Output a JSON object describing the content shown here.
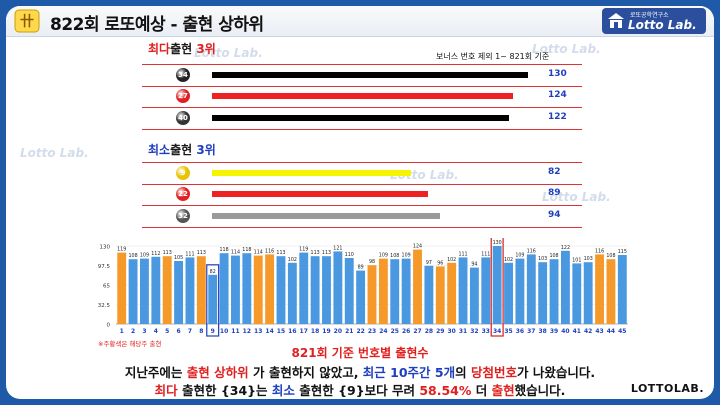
{
  "header": {
    "title": "822회 로또예상 - 출현 상하위",
    "brand_small": "로또공학연구소",
    "brand_big": "Lotto Lab."
  },
  "watermark": "Lotto Lab.",
  "top_section": {
    "title_a": "최다",
    "title_b": "출현",
    "title_c": "3위",
    "note": "보너스 번호 제외 1~ 821회 기준",
    "rows": [
      {
        "ball": "34",
        "count": "130",
        "value": 130,
        "ball_color": "#222222",
        "bar_color": "#000000"
      },
      {
        "ball": "27",
        "count": "124",
        "value": 124,
        "ball_color": "#e02020",
        "bar_color": "#ee2222"
      },
      {
        "ball": "40",
        "count": "122",
        "value": 122,
        "ball_color": "#333333",
        "bar_color": "#000000"
      }
    ]
  },
  "bottom_section": {
    "title_a": "최소",
    "title_b": "출현",
    "title_c": "3위",
    "rows": [
      {
        "ball": "9",
        "count": "82",
        "value": 82,
        "ball_color": "#e8c400",
        "bar_color": "#f5f500"
      },
      {
        "ball": "22",
        "count": "89",
        "value": 89,
        "ball_color": "#e02020",
        "bar_color": "#ee2222"
      },
      {
        "ball": "32",
        "count": "94",
        "value": 94,
        "ball_color": "#555555",
        "bar_color": "#9a9a9a"
      }
    ]
  },
  "chart_data": {
    "type": "bar",
    "title": "821회 기준 번호별 출현수",
    "legend_note": "※주황색은 해당주 출현",
    "categories": [
      "1",
      "2",
      "3",
      "4",
      "5",
      "6",
      "7",
      "8",
      "9",
      "10",
      "11",
      "12",
      "13",
      "14",
      "15",
      "16",
      "17",
      "18",
      "19",
      "20",
      "21",
      "22",
      "23",
      "24",
      "25",
      "26",
      "27",
      "28",
      "29",
      "30",
      "31",
      "32",
      "33",
      "34",
      "35",
      "36",
      "37",
      "38",
      "39",
      "40",
      "41",
      "42",
      "43",
      "44",
      "45"
    ],
    "values": [
      119,
      108,
      109,
      112,
      113,
      105,
      111,
      113,
      82,
      118,
      114,
      118,
      114,
      116,
      113,
      102,
      119,
      113,
      113,
      121,
      110,
      89,
      98,
      109,
      108,
      109,
      124,
      97,
      96,
      102,
      111,
      94,
      111,
      130,
      102,
      109,
      116,
      103,
      108,
      122,
      101,
      103,
      116,
      108,
      115
    ],
    "highlighted": [
      "1",
      "5",
      "8",
      "13",
      "14",
      "23",
      "24",
      "27",
      "29",
      "30",
      "43",
      "44"
    ],
    "boxed": [
      "9",
      "34"
    ],
    "bar_color": "#4a98e0",
    "highlight_color": "#f59a2a",
    "ylim": [
      0,
      130
    ],
    "y_ticks": [
      "130",
      "97.5",
      "65",
      "32.5",
      "0"
    ]
  },
  "summary": {
    "line1": [
      {
        "t": "지난주에는 ",
        "c": "#111111"
      },
      {
        "t": "출현 상하위",
        "c": "#e02020"
      },
      {
        "t": " 가 출현하지 않았고, ",
        "c": "#111111"
      },
      {
        "t": "최근 10주간 5개",
        "c": "#1f3fbf"
      },
      {
        "t": "의 ",
        "c": "#111111"
      },
      {
        "t": "당첨번호",
        "c": "#e02020"
      },
      {
        "t": "가 나왔습니다.",
        "c": "#111111"
      }
    ],
    "line2": [
      {
        "t": "최다",
        "c": "#e02020"
      },
      {
        "t": " 출현한 {34}는 ",
        "c": "#111111"
      },
      {
        "t": "최소",
        "c": "#1f3fbf"
      },
      {
        "t": " 출현한 {9}보다 무려 ",
        "c": "#111111"
      },
      {
        "t": "58.54%",
        "c": "#e02020"
      },
      {
        "t": " 더 ",
        "c": "#111111"
      },
      {
        "t": "출현",
        "c": "#e02020"
      },
      {
        "t": "했습니다.",
        "c": "#111111"
      }
    ]
  },
  "footer": "LOTTOLAB."
}
